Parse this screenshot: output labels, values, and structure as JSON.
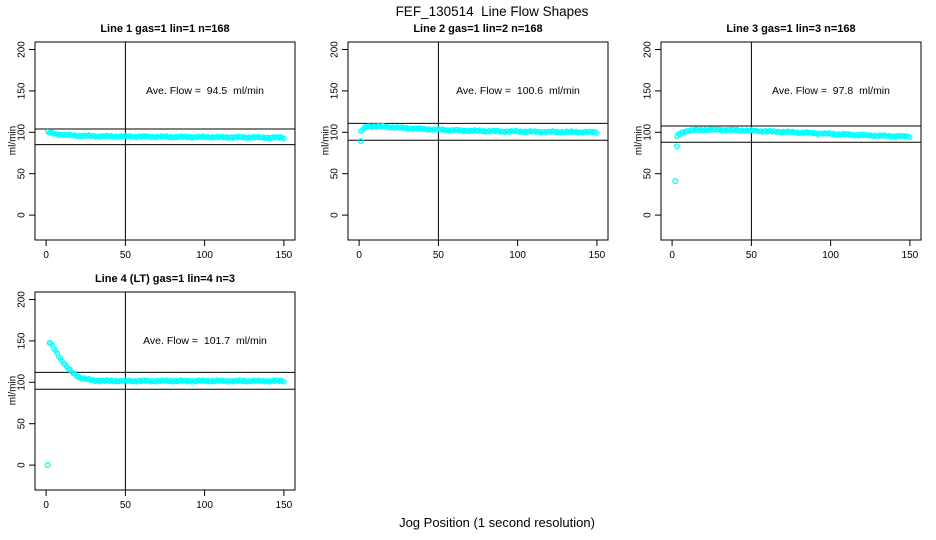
{
  "figure": {
    "title": "FEF_130514  Line Flow Shapes",
    "xlabel": "Jog Position (1 second resolution)",
    "point_color": "#00FFFF",
    "line_color": "#000000",
    "background": "#FFFFFF"
  },
  "chart_data": [
    {
      "type": "scatter",
      "title": "Line 1 gas=1 lin=1 n=168",
      "ylabel": "ml/min",
      "annotation": "Ave. Flow =  94.5  ml/min",
      "ave_flow_ml_min": 94.5,
      "n": 168,
      "xlim": [
        -7,
        157
      ],
      "ylim": [
        -30,
        209
      ],
      "xticks": [
        0,
        50,
        100,
        150
      ],
      "yticks": [
        0,
        50,
        100,
        150,
        200
      ],
      "vline_x": 50,
      "hlines": [
        104.0,
        85.1
      ],
      "profile": [
        [
          1,
          100
        ],
        [
          3,
          99
        ],
        [
          5,
          98.3
        ],
        [
          8,
          97.6
        ],
        [
          12,
          96.8
        ],
        [
          18,
          96.2
        ],
        [
          25,
          95.7
        ],
        [
          35,
          95.2
        ],
        [
          50,
          94.9
        ],
        [
          70,
          94.6
        ],
        [
          95,
          94.3
        ],
        [
          120,
          94.0
        ],
        [
          150,
          93.6
        ]
      ],
      "outliers": []
    },
    {
      "type": "scatter",
      "title": "Line 2 gas=1 lin=2 n=168",
      "ylabel": "ml/min",
      "annotation": "Ave. Flow =  100.6  ml/min",
      "ave_flow_ml_min": 100.6,
      "n": 168,
      "xlim": [
        -7,
        157
      ],
      "ylim": [
        -30,
        209
      ],
      "xticks": [
        0,
        50,
        100,
        150
      ],
      "yticks": [
        0,
        50,
        100,
        150,
        200
      ],
      "vline_x": 50,
      "hlines": [
        110.7,
        90.5
      ],
      "profile": [
        [
          1,
          100.5
        ],
        [
          2,
          103
        ],
        [
          4,
          106
        ],
        [
          6,
          107.3
        ],
        [
          10,
          107.6
        ],
        [
          15,
          107
        ],
        [
          22,
          106
        ],
        [
          30,
          105
        ],
        [
          42,
          103.8
        ],
        [
          55,
          102.8
        ],
        [
          70,
          102
        ],
        [
          90,
          101.2
        ],
        [
          115,
          100.6
        ],
        [
          150,
          100.2
        ]
      ],
      "outliers": [
        [
          1,
          89.5
        ]
      ]
    },
    {
      "type": "scatter",
      "title": "Line 3 gas=1 lin=3 n=168",
      "ylabel": "ml/min",
      "annotation": "Ave. Flow =  97.8  ml/min",
      "ave_flow_ml_min": 97.8,
      "n": 168,
      "xlim": [
        -7,
        157
      ],
      "ylim": [
        -30,
        209
      ],
      "xticks": [
        0,
        50,
        100,
        150
      ],
      "yticks": [
        0,
        50,
        100,
        150,
        200
      ],
      "vline_x": 50,
      "hlines": [
        107.6,
        88.0
      ],
      "profile": [
        [
          3,
          94.5
        ],
        [
          4,
          97
        ],
        [
          6,
          99.5
        ],
        [
          9,
          101.5
        ],
        [
          13,
          102.5
        ],
        [
          20,
          103
        ],
        [
          30,
          103
        ],
        [
          45,
          102.3
        ],
        [
          60,
          101.2
        ],
        [
          80,
          99.8
        ],
        [
          100,
          98.2
        ],
        [
          120,
          96.6
        ],
        [
          135,
          95.6
        ],
        [
          150,
          94.8
        ]
      ],
      "outliers": [
        [
          2,
          41
        ],
        [
          3,
          83
        ]
      ]
    },
    {
      "type": "scatter",
      "title": "Line 4 (LT) gas=1 lin=4 n=3",
      "ylabel": "ml/min",
      "annotation": "Ave. Flow =  101.7  ml/min",
      "ave_flow_ml_min": 101.7,
      "n": 3,
      "xlim": [
        -7,
        157
      ],
      "ylim": [
        -30,
        209
      ],
      "xticks": [
        0,
        50,
        100,
        150
      ],
      "yticks": [
        0,
        50,
        100,
        150,
        200
      ],
      "vline_x": 50,
      "hlines": [
        111.9,
        91.5
      ],
      "profile": [
        [
          2,
          148
        ],
        [
          3,
          146.5
        ],
        [
          4,
          144
        ],
        [
          5,
          141
        ],
        [
          6,
          138
        ],
        [
          7,
          135
        ],
        [
          8,
          132
        ],
        [
          9,
          129
        ],
        [
          10,
          126
        ],
        [
          11,
          123.5
        ],
        [
          12,
          121
        ],
        [
          13,
          118.5
        ],
        [
          14,
          116.5
        ],
        [
          15,
          114.5
        ],
        [
          16,
          112.8
        ],
        [
          17,
          111.2
        ],
        [
          18,
          109.8
        ],
        [
          19,
          108.5
        ],
        [
          20,
          107.3
        ],
        [
          22,
          105.6
        ],
        [
          24,
          104.4
        ],
        [
          26,
          103.5
        ],
        [
          28,
          102.8
        ],
        [
          30,
          102.3
        ],
        [
          34,
          101.9
        ],
        [
          40,
          101.7
        ],
        [
          50,
          101.6
        ],
        [
          70,
          101.6
        ],
        [
          100,
          101.6
        ],
        [
          150,
          101.6
        ]
      ],
      "outliers": [
        [
          1,
          0
        ]
      ]
    }
  ]
}
